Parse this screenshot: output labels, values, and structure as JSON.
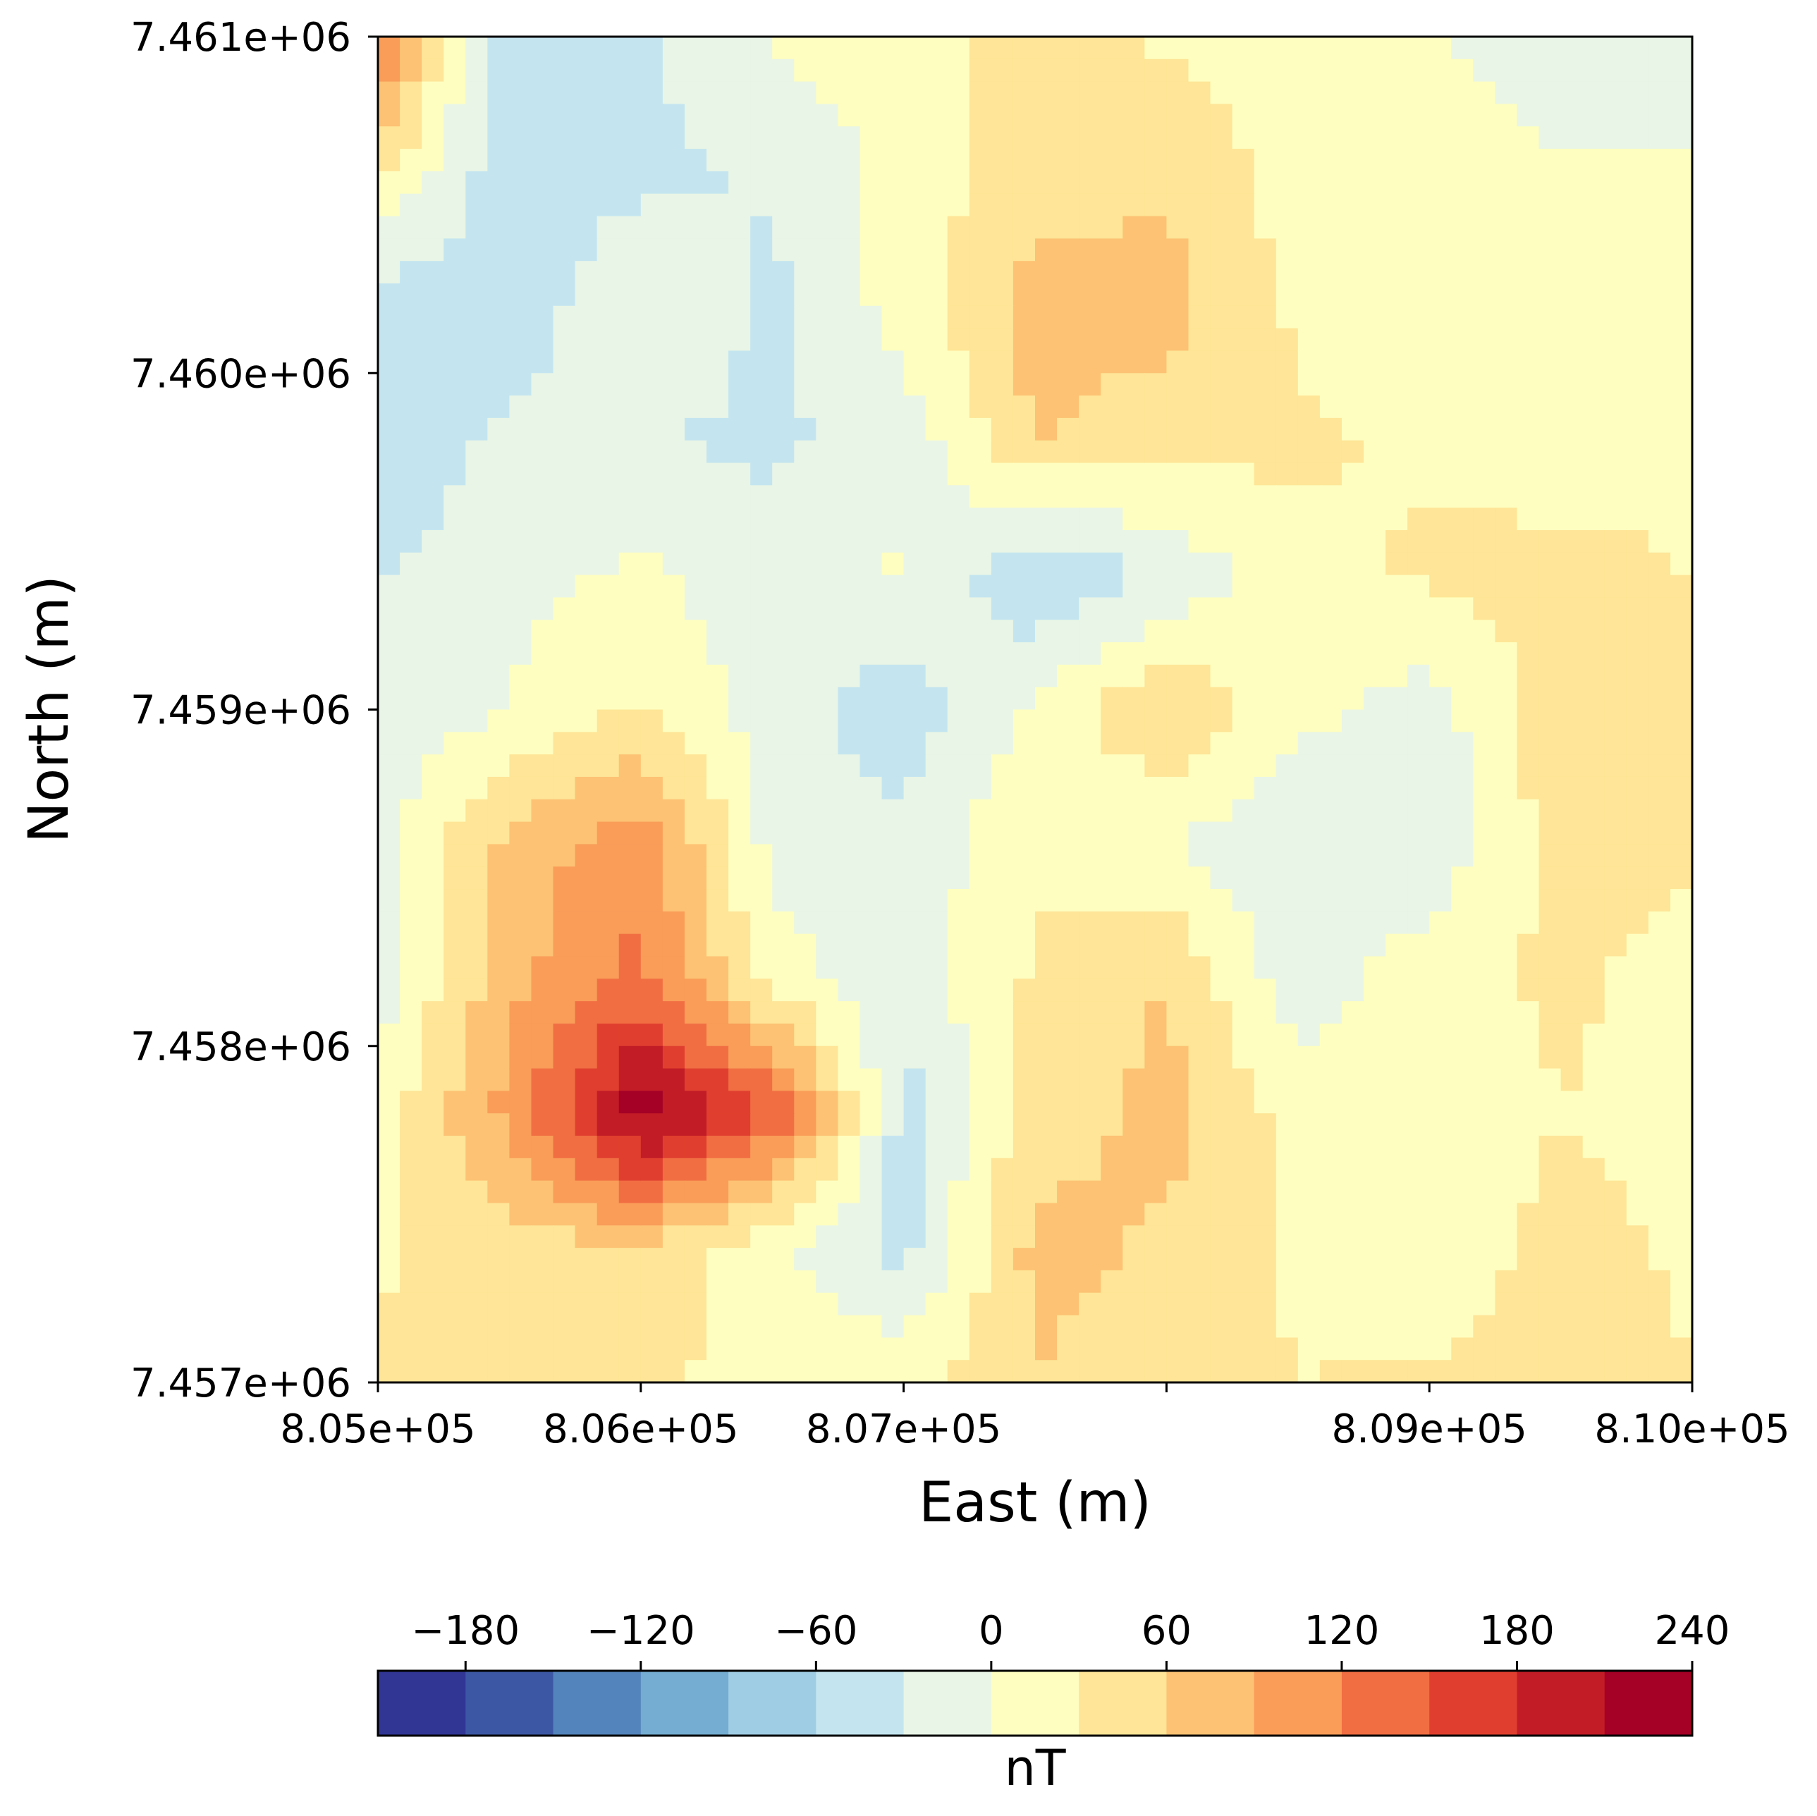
{
  "chart_data": {
    "type": "heatmap",
    "subtype": "filled-contour",
    "xlabel": "East (m)",
    "ylabel": "North (m)",
    "x_ticks": [
      805000,
      806000,
      807000,
      808000,
      809000,
      810000
    ],
    "x_tick_labels": [
      "8.05e+05",
      "8.06e+05",
      "8.07e+05",
      "8.09e+05",
      "8.10e+05"
    ],
    "x_tick_values_labeled": [
      805000,
      806000,
      807000,
      809000,
      810000
    ],
    "y_ticks": [
      7457000,
      7458000,
      7459000,
      7460000,
      7461000
    ],
    "y_tick_labels": [
      "7.457e+06",
      "7.458e+06",
      "7.459e+06",
      "7.460e+06",
      "7.461e+06"
    ],
    "xlim": [
      805000,
      810000
    ],
    "ylim": [
      7457000,
      7461000
    ],
    "colorbar": {
      "label": "nT",
      "ticks": [
        -180,
        -120,
        -60,
        0,
        60,
        120,
        180,
        240
      ],
      "tick_labels": [
        "−180",
        "−120",
        "−60",
        "0",
        "60",
        "120",
        "180",
        "240"
      ],
      "levels": [
        -210,
        -180,
        -150,
        -120,
        -90,
        -60,
        -30,
        0,
        30,
        60,
        90,
        120,
        150,
        180,
        210,
        240
      ],
      "colors": [
        "#313695",
        "#3c58a5",
        "#5384bb",
        "#74add1",
        "#9fcde4",
        "#c4e5f0",
        "#e9f5e6",
        "#fefec0",
        "#fee597",
        "#fdc274",
        "#f99d59",
        "#f16e43",
        "#e03f2f",
        "#c21c27",
        "#a50026"
      ],
      "location": "bottom"
    },
    "grid_x": [
      805000,
      805500,
      806000,
      806500,
      807000,
      807500,
      808000,
      808500,
      809000,
      809500,
      810000
    ],
    "grid_y": [
      7461000,
      7460600,
      7460200,
      7459800,
      7459400,
      7459000,
      7458600,
      7458200,
      7457800,
      7457400,
      7457000
    ],
    "grid_values": [
      [
        130,
        -60,
        -35,
        5,
        15,
        45,
        25,
        10,
        5,
        -20,
        -15
      ],
      [
        35,
        -50,
        -40,
        -25,
        10,
        45,
        55,
        15,
        10,
        5,
        5
      ],
      [
        -45,
        -55,
        5,
        -40,
        15,
        75,
        70,
        25,
        10,
        10,
        5
      ],
      [
        -60,
        -20,
        -30,
        -35,
        -20,
        60,
        45,
        35,
        25,
        15,
        20
      ],
      [
        -30,
        -10,
        5,
        -20,
        5,
        -60,
        -25,
        20,
        35,
        40,
        30
      ],
      [
        -25,
        0,
        35,
        -15,
        -50,
        5,
        60,
        10,
        -15,
        50,
        40
      ],
      [
        -10,
        70,
        110,
        -10,
        -20,
        25,
        0,
        -30,
        -25,
        45,
        35
      ],
      [
        -15,
        80,
        130,
        15,
        -20,
        35,
        60,
        -20,
        20,
        35,
        20
      ],
      [
        10,
        100,
        230,
        150,
        -45,
        45,
        70,
        20,
        0,
        30,
        20
      ],
      [
        25,
        45,
        60,
        5,
        -40,
        70,
        55,
        25,
        10,
        40,
        25
      ],
      [
        35,
        55,
        30,
        25,
        20,
        60,
        40,
        30,
        35,
        45,
        30
      ]
    ]
  }
}
